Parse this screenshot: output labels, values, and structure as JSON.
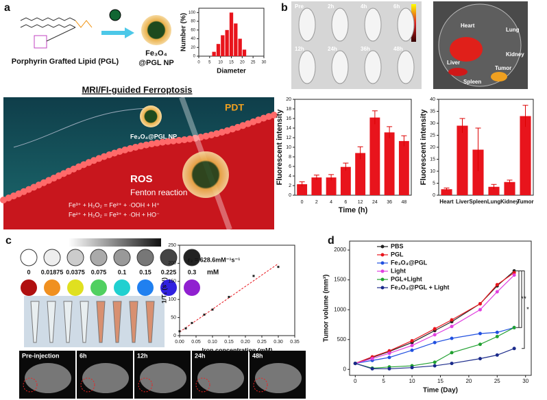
{
  "panel_labels": [
    "a",
    "b",
    "c",
    "d"
  ],
  "panel_a": {
    "lipid_label": "Porphyrin Grafted Lipid (PGL)",
    "np_label": [
      "Fe₃O₄",
      "@PGL NP"
    ],
    "section_title": "MRI/FI-guided Ferroptosis",
    "pdt": "PDT",
    "np_tag": "Fe₃O₄@PGL NP",
    "ros": "ROS",
    "fenton": "Fenton reaction",
    "equations": [
      "Fe³⁺ + H₂O₂ = Fe²⁺ + ·OOH + H⁺",
      "Fe²⁺ + H₂O₂ = Fe³⁺ + ·OH + HO⁻"
    ]
  },
  "panel_b": {
    "timepoints": [
      "Pre",
      "2h",
      "4h",
      "6h",
      "12h",
      "24h",
      "36h",
      "48h"
    ],
    "organs": [
      "Heart",
      "Lung",
      "Kidney",
      "Liver",
      "Tumor",
      "Spleen"
    ]
  },
  "panel_c": {
    "concentrations": [
      0,
      0.01875,
      0.0375,
      0.075,
      0.1,
      0.15,
      0.225,
      0.3
    ],
    "unit": "mM",
    "mri_timepoints": [
      "Pre-injection",
      "6h",
      "12h",
      "24h",
      "48h"
    ]
  },
  "chart_data": [
    {
      "type": "histogram",
      "xlabel": "Diameter",
      "ylabel": "Number (%)",
      "bins": [
        6,
        8,
        10,
        12,
        14,
        16,
        18,
        20,
        22
      ],
      "values": [
        10,
        28,
        48,
        60,
        100,
        75,
        40,
        15
      ],
      "color": "#e8141c",
      "xlim": [
        0,
        30
      ],
      "xticks": [
        0,
        5,
        10,
        15,
        20,
        25,
        30
      ],
      "ylim": [
        0,
        110
      ],
      "yticks": [
        0,
        20,
        40,
        60,
        80,
        100
      ]
    },
    {
      "type": "bar",
      "xlabel": "Time (h)",
      "ylabel": "Fluorescent intensity",
      "categories": [
        "0",
        "2",
        "4",
        "6",
        "12",
        "24",
        "36",
        "48"
      ],
      "values": [
        2.3,
        3.7,
        3.7,
        5.9,
        8.8,
        16.2,
        13.1,
        11.3
      ],
      "errors": [
        0.5,
        0.5,
        0.6,
        0.8,
        1.3,
        1.4,
        1.2,
        1.1
      ],
      "color": "#e8141c",
      "ylim": [
        0,
        20
      ],
      "yticks": [
        0,
        2,
        4,
        6,
        8,
        10,
        12,
        14,
        16,
        18,
        20
      ]
    },
    {
      "type": "bar",
      "ylabel": "Fluorescent intensity",
      "categories": [
        "Heart",
        "Liver",
        "Spleen",
        "Lung",
        "Kidney",
        "Tumor"
      ],
      "values": [
        2.5,
        29,
        19,
        3.5,
        5.5,
        33
      ],
      "errors": [
        0.5,
        3,
        9,
        1,
        0.8,
        4.5
      ],
      "color": "#e8141c",
      "ylim": [
        0,
        40
      ],
      "yticks": [
        0,
        5,
        10,
        15,
        20,
        25,
        30,
        35,
        40
      ]
    },
    {
      "type": "scatter",
      "xlabel": "Iron concentration (mM)",
      "ylabel": "1/T₁ (s⁻¹)",
      "annotation": "r₂ = 628.6mM⁻¹s⁻¹",
      "x": [
        0,
        0.01875,
        0.0375,
        0.075,
        0.1,
        0.15,
        0.225,
        0.3
      ],
      "values": [
        12,
        20,
        35,
        58,
        72,
        107,
        165,
        190
      ],
      "fit": {
        "x": [
          0,
          0.3
        ],
        "y": [
          10,
          199
        ],
        "color": "#e8141c"
      },
      "color": "#222222",
      "xlim": [
        0,
        0.35
      ],
      "xticks": [
        {
          "value": 0,
          "label": "0.00"
        },
        {
          "value": 0.05,
          "label": "0.05"
        },
        {
          "value": 0.1,
          "label": "0.10"
        },
        {
          "value": 0.15,
          "label": "0.15"
        },
        {
          "value": 0.2,
          "label": "0.20"
        },
        {
          "value": 0.25,
          "label": "0.25"
        },
        {
          "value": 0.3,
          "label": "0.30"
        },
        {
          "value": 0.35,
          "label": "0.35"
        }
      ],
      "ylim": [
        0,
        250
      ],
      "yticks": [
        0,
        50,
        100,
        150,
        200,
        250
      ]
    },
    {
      "type": "line",
      "xlabel": "Time (Day)",
      "ylabel": "Tumor volume (mm³)",
      "x": [
        0,
        3,
        6,
        10,
        14,
        17,
        22,
        25,
        28
      ],
      "series": [
        {
          "name": "PBS",
          "color": "#222222",
          "values": [
            100,
            200,
            300,
            450,
            650,
            800,
            1100,
            1400,
            1650
          ]
        },
        {
          "name": "PGL",
          "color": "#e8141c",
          "values": [
            100,
            210,
            310,
            480,
            680,
            830,
            1100,
            1420,
            1620
          ]
        },
        {
          "name": "Fe₃O₄@PGL",
          "color": "#2050e0",
          "values": [
            100,
            150,
            200,
            320,
            450,
            520,
            600,
            620,
            700
          ]
        },
        {
          "name": "Light",
          "color": "#e040e0",
          "values": [
            100,
            180,
            270,
            400,
            580,
            720,
            1000,
            1300,
            1580
          ]
        },
        {
          "name": "PGL+Light",
          "color": "#20a030",
          "values": [
            100,
            20,
            40,
            60,
            120,
            280,
            420,
            550,
            700
          ]
        },
        {
          "name": "Fe₃O₄@PGL + Light",
          "color": "#1a2a8a",
          "values": [
            100,
            10,
            10,
            30,
            60,
            100,
            180,
            240,
            350
          ]
        }
      ],
      "annotations": [
        "*",
        "*",
        "*"
      ],
      "xlim": [
        -1,
        31
      ],
      "xticks": [
        0,
        5,
        10,
        15,
        20,
        25,
        30
      ],
      "ylim": [
        -100,
        2150
      ],
      "yticks": [
        0,
        500,
        1000,
        1500,
        2000
      ]
    }
  ]
}
